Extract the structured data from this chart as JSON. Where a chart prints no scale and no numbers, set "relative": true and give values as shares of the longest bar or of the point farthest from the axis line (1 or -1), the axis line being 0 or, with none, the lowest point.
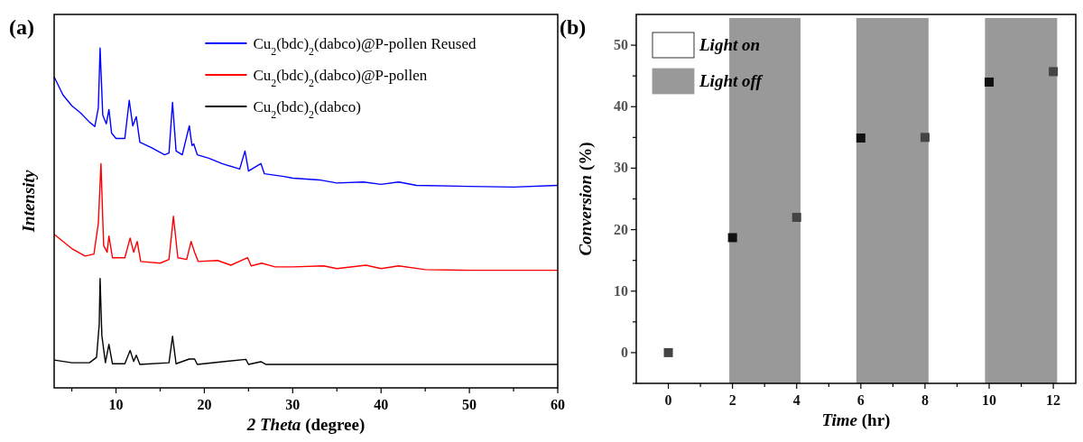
{
  "chart_data": [
    {
      "type": "line",
      "title": "(a)",
      "xlabel": "2 Theta (degree)",
      "ylabel": "Intensity",
      "relative": true,
      "xlim": [
        3,
        60
      ],
      "xticks": [
        10,
        20,
        30,
        40,
        50,
        60,
        {
          "value": 5,
          "label": null
        },
        {
          "value": 15,
          "label": null
        },
        {
          "value": 25,
          "label": null
        },
        {
          "value": 35,
          "label": null
        },
        {
          "value": 45,
          "label": null
        },
        {
          "value": 55,
          "label": null
        }
      ],
      "tick_labels": "x",
      "legend": "top right",
      "grid": false,
      "series": [
        {
          "name": "Cu$_{2}$(bdc)$_{2}$(dabco)@P-pollen Reused",
          "color": "#0000ff",
          "x": [
            3,
            4,
            5,
            6,
            7,
            7.6,
            8,
            8.2,
            8.5,
            8.9,
            9.2,
            9.5,
            10,
            11,
            11.5,
            11.9,
            12.3,
            12.7,
            14,
            15.5,
            16,
            16.4,
            16.8,
            17.5,
            18.3,
            18.6,
            18.8,
            19.2,
            20.5,
            22,
            24,
            24.6,
            25,
            26.4,
            26.8,
            29,
            30,
            33,
            35,
            38,
            40,
            42,
            44,
            50,
            55,
            60
          ],
          "values": [
            0.915,
            0.862,
            0.83,
            0.809,
            0.782,
            0.769,
            0.824,
            1,
            0.803,
            0.777,
            0.819,
            0.75,
            0.734,
            0.734,
            0.846,
            0.771,
            0.798,
            0.723,
            0.707,
            0.686,
            0.691,
            0.84,
            0.697,
            0.686,
            0.771,
            0.713,
            0.718,
            0.686,
            0.676,
            0.66,
            0.644,
            0.697,
            0.638,
            0.66,
            0.63,
            0.622,
            0.617,
            0.612,
            0.603,
            0.606,
            0.599,
            0.606,
            0.596,
            0.593,
            0.591,
            0.596
          ]
        },
        {
          "name": "Cu$_{2}$(bdc)$_{2}$(dabco)@P-pollen",
          "color": "#ff0000",
          "x": [
            3,
            5,
            6.5,
            7.5,
            8,
            8.3,
            8.6,
            9,
            9.2,
            9.6,
            11,
            11.6,
            12,
            12.4,
            12.8,
            15,
            16,
            16.5,
            17,
            18,
            18.5,
            18.9,
            19.3,
            21.5,
            23,
            24.9,
            25.3,
            26.5,
            28,
            30,
            33.5,
            35,
            38.3,
            40,
            42,
            45,
            50,
            60
          ],
          "values": [
            0.452,
            0.41,
            0.388,
            0.394,
            0.484,
            0.66,
            0.419,
            0.399,
            0.447,
            0.383,
            0.383,
            0.441,
            0.399,
            0.431,
            0.372,
            0.367,
            0.378,
            0.505,
            0.383,
            0.378,
            0.431,
            0.399,
            0.372,
            0.375,
            0.361,
            0.383,
            0.359,
            0.367,
            0.356,
            0.356,
            0.359,
            0.351,
            0.361,
            0.351,
            0.359,
            0.348,
            0.346,
            0.346
          ]
        },
        {
          "name": "Cu$_{2}$(bdc)$_{2}$(dabco)",
          "color": "#000000",
          "x": [
            3,
            5,
            7,
            7.8,
            8.1,
            8.2,
            8.4,
            8.8,
            9.2,
            9.6,
            11,
            11.6,
            12,
            12.3,
            12.7,
            16,
            16.4,
            16.8,
            18.3,
            18.9,
            19.2,
            24.7,
            25,
            26.4,
            27,
            60
          ],
          "values": [
            0.082,
            0.074,
            0.074,
            0.09,
            0.186,
            0.322,
            0.154,
            0.074,
            0.128,
            0.071,
            0.071,
            0.11,
            0.078,
            0.096,
            0.069,
            0.074,
            0.152,
            0.071,
            0.085,
            0.085,
            0.069,
            0.084,
            0.069,
            0.077,
            0.069,
            0.069
          ]
        }
      ]
    },
    {
      "type": "scatter",
      "title": "(b)",
      "xlabel": "Time (hr)",
      "ylabel": "Conversion (%)",
      "xlim": [
        -1,
        12.7
      ],
      "ylim": [
        -5,
        55
      ],
      "xticks": [
        0,
        2,
        4,
        6,
        8,
        10,
        12,
        {
          "value": 1,
          "label": null
        },
        {
          "value": 3,
          "label": null
        },
        {
          "value": 5,
          "label": null
        },
        {
          "value": 7,
          "label": null
        },
        {
          "value": 9,
          "label": null
        },
        {
          "value": 11,
          "label": null
        }
      ],
      "yticks": [
        0,
        10,
        20,
        30,
        40,
        50,
        {
          "value": -5,
          "label": null
        },
        {
          "value": 5,
          "label": null
        },
        {
          "value": 15,
          "label": null
        },
        {
          "value": 25,
          "label": null
        },
        {
          "value": 35,
          "label": null
        },
        {
          "value": 45,
          "label": null
        }
      ],
      "marker": "square",
      "legend": "top left",
      "grid": false,
      "annotations": [
        "Light on"
      ],
      "bands": [
        {
          "axis": "x",
          "from": 1.9,
          "to": 4.12,
          "label": "Light off",
          "color": "#999999"
        },
        {
          "axis": "x",
          "from": 5.86,
          "to": 8.11,
          "color": "#999999"
        },
        {
          "axis": "x",
          "from": 9.87,
          "to": 12.12,
          "color": "#999999"
        }
      ],
      "series": [
        {
          "x": [
            0,
            2,
            4,
            6,
            8,
            10,
            12
          ],
          "values": [
            0,
            18.7,
            22,
            34.9,
            35,
            44,
            45.7
          ],
          "colors": [
            "#444444",
            "#111111",
            "#444444",
            "#111111",
            "#444444",
            "#111111",
            "#444444"
          ]
        }
      ]
    }
  ]
}
